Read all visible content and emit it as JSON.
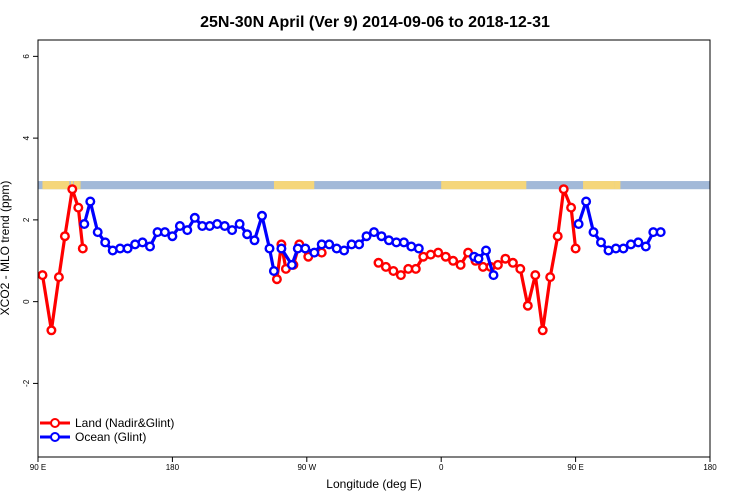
{
  "chart_data": {
    "type": "line",
    "title": "25N-30N April (Ver 9)   2014-09-06 to 2018-12-31",
    "xlabel": "Longitude (deg E)",
    "ylabel": "XCO2 - MLO trend (ppm)",
    "xlim": [
      90,
      540
    ],
    "ylim": [
      -3.8,
      6.4
    ],
    "x_ticks": [
      {
        "value": 90,
        "label": "90 E"
      },
      {
        "value": 180,
        "label": "180"
      },
      {
        "value": 270,
        "label": "90 W"
      },
      {
        "value": 360,
        "label": "0"
      },
      {
        "value": 450,
        "label": "90 E"
      },
      {
        "value": 540,
        "label": "180"
      }
    ],
    "y_ticks": [
      {
        "value": -2,
        "label": "-2"
      },
      {
        "value": 0,
        "label": "0"
      },
      {
        "value": 2,
        "label": "2"
      },
      {
        "value": 4,
        "label": "4"
      },
      {
        "value": 6,
        "label": "6"
      }
    ],
    "grid": false,
    "legend_position": "bottom-left",
    "land_mask_band": {
      "y_range": [
        2.75,
        2.95
      ],
      "ocean_color": "#a2b9d8",
      "land_color": "#f5d67a",
      "land_x_ranges": [
        [
          93,
          111
        ],
        [
          112,
          113
        ],
        [
          114,
          115
        ],
        [
          112.5,
          113.5
        ],
        [
          114.5,
          115.5
        ],
        [
          115.5,
          117.5
        ],
        [
          117.5,
          118.5
        ],
        [
          248,
          275
        ],
        [
          360,
          417
        ],
        [
          455,
          476
        ],
        [
          476,
          480
        ]
      ]
    },
    "series": [
      {
        "name": "Land (Nadir&Glint)",
        "color": "#ff0000",
        "segments": [
          [
            [
              93,
              0.65
            ],
            [
              99,
              -0.7
            ],
            [
              104,
              0.6
            ],
            [
              108,
              1.6
            ],
            [
              113,
              2.75
            ],
            [
              117,
              2.3
            ],
            [
              120,
              1.3
            ]
          ],
          [
            [
              250,
              0.55
            ],
            [
              253,
              1.4
            ],
            [
              256,
              0.8
            ],
            [
              261,
              0.9
            ],
            [
              265,
              1.4
            ],
            [
              271,
              1.1
            ],
            [
              280,
              1.2
            ]
          ],
          [
            [
              318,
              0.95
            ],
            [
              323,
              0.85
            ],
            [
              328,
              0.75
            ],
            [
              333,
              0.65
            ],
            [
              338,
              0.8
            ],
            [
              343,
              0.8
            ],
            [
              348,
              1.1
            ],
            [
              353,
              1.15
            ],
            [
              358,
              1.2
            ],
            [
              363,
              1.1
            ],
            [
              368,
              1.0
            ],
            [
              373,
              0.9
            ],
            [
              378,
              1.2
            ],
            [
              383,
              1.0
            ],
            [
              388,
              0.85
            ],
            [
              393,
              0.85
            ],
            [
              398,
              0.9
            ],
            [
              403,
              1.05
            ],
            [
              408,
              0.95
            ],
            [
              413,
              0.8
            ],
            [
              418,
              -0.1
            ],
            [
              423,
              0.65
            ],
            [
              428,
              -0.7
            ],
            [
              433,
              0.6
            ],
            [
              438,
              1.6
            ],
            [
              442,
              2.75
            ],
            [
              447,
              2.3
            ],
            [
              450,
              1.3
            ]
          ]
        ]
      },
      {
        "name": "Ocean (Glint)",
        "color": "#0000ff",
        "segments": [
          [
            [
              121,
              1.9
            ],
            [
              125,
              2.45
            ],
            [
              130,
              1.7
            ],
            [
              135,
              1.45
            ],
            [
              140,
              1.25
            ],
            [
              145,
              1.3
            ],
            [
              150,
              1.3
            ],
            [
              155,
              1.4
            ],
            [
              160,
              1.45
            ],
            [
              165,
              1.35
            ],
            [
              170,
              1.7
            ],
            [
              175,
              1.7
            ],
            [
              180,
              1.6
            ],
            [
              185,
              1.85
            ],
            [
              190,
              1.75
            ],
            [
              195,
              2.05
            ],
            [
              200,
              1.85
            ],
            [
              205,
              1.85
            ],
            [
              210,
              1.9
            ],
            [
              215,
              1.85
            ],
            [
              220,
              1.75
            ],
            [
              225,
              1.9
            ],
            [
              230,
              1.65
            ],
            [
              235,
              1.5
            ],
            [
              240,
              2.1
            ],
            [
              245,
              1.3
            ],
            [
              248,
              0.75
            ]
          ],
          [
            [
              253,
              1.3
            ],
            [
              260,
              0.9
            ],
            [
              264,
              1.3
            ],
            [
              269,
              1.3
            ],
            [
              275,
              1.2
            ],
            [
              280,
              1.4
            ],
            [
              285,
              1.4
            ],
            [
              290,
              1.3
            ],
            [
              295,
              1.25
            ],
            [
              300,
              1.4
            ],
            [
              305,
              1.4
            ],
            [
              310,
              1.6
            ],
            [
              315,
              1.7
            ],
            [
              320,
              1.6
            ],
            [
              325,
              1.5
            ],
            [
              330,
              1.45
            ],
            [
              335,
              1.45
            ],
            [
              340,
              1.35
            ],
            [
              345,
              1.3
            ]
          ],
          [
            [
              382,
              1.1
            ],
            [
              385,
              1.05
            ],
            [
              390,
              1.25
            ],
            [
              395,
              0.65
            ]
          ],
          [
            [
              452,
              1.9
            ],
            [
              457,
              2.45
            ],
            [
              462,
              1.7
            ],
            [
              467,
              1.45
            ],
            [
              472,
              1.25
            ],
            [
              477,
              1.3
            ],
            [
              482,
              1.3
            ],
            [
              487,
              1.4
            ],
            [
              492,
              1.45
            ],
            [
              497,
              1.35
            ],
            [
              502,
              1.7
            ],
            [
              507,
              1.7
            ]
          ]
        ]
      }
    ]
  }
}
